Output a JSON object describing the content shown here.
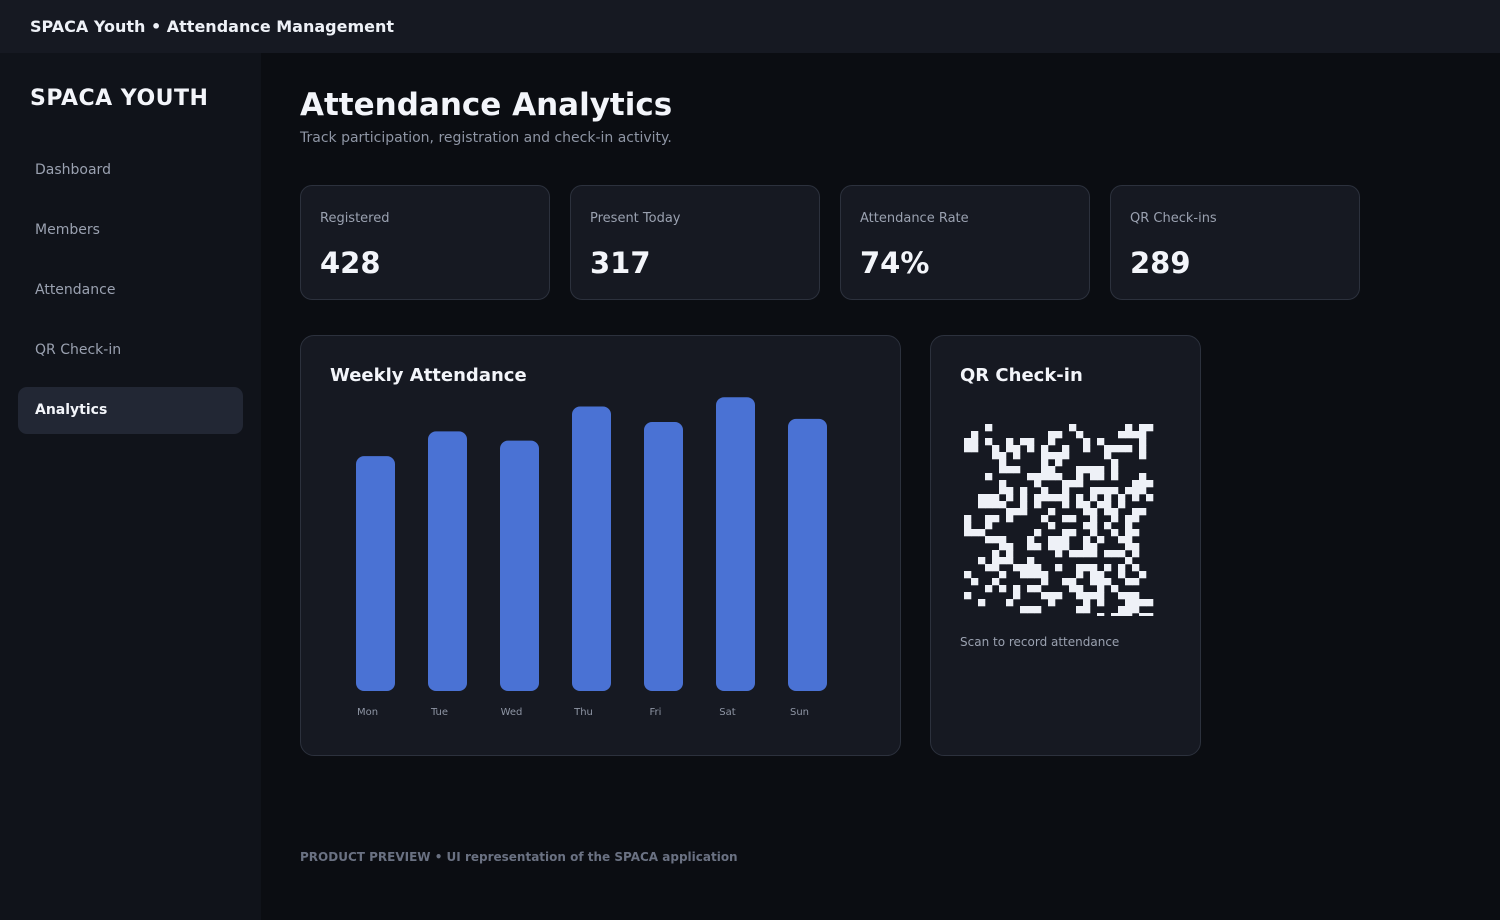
{
  "app": {
    "title": "SPACA Youth • Attendance Management"
  },
  "sidebar": {
    "brand": "SPACA YOUTH",
    "items": [
      {
        "label": "Dashboard",
        "active": false
      },
      {
        "label": "Members",
        "active": false
      },
      {
        "label": "Attendance",
        "active": false
      },
      {
        "label": "QR Check-in",
        "active": false
      },
      {
        "label": "Analytics",
        "active": true
      }
    ]
  },
  "header": {
    "title": "Attendance Analytics",
    "subtitle": "Track participation, registration and check-in activity."
  },
  "stats": [
    {
      "label": "Registered",
      "value": "428"
    },
    {
      "label": "Present Today",
      "value": "317"
    },
    {
      "label": "Attendance Rate",
      "value": "74%"
    },
    {
      "label": "QR Check-ins",
      "value": "289"
    }
  ],
  "weekly_panel": {
    "title": "Weekly Attendance"
  },
  "chart_data": {
    "type": "bar",
    "title": "Weekly Attendance",
    "categories": [
      "Mon",
      "Tue",
      "Wed",
      "Thu",
      "Fri",
      "Sat",
      "Sun"
    ],
    "values": [
      227,
      251,
      242,
      275,
      260,
      284,
      263
    ],
    "ylim": [
      0,
      290
    ],
    "grid": false,
    "color": "#4a72d4"
  },
  "qr_panel": {
    "title": "QR Check-in",
    "caption": "Scan to record attendance",
    "icon": "qr-code-icon"
  },
  "footer": {
    "text": "PRODUCT PREVIEW • UI representation of the SPACA application"
  },
  "colors": {
    "background": "#0b0d12",
    "topbar": "#161922",
    "sidebar": "#10131a",
    "card": "#161922",
    "accent": "#4a72d4",
    "active_nav": "#222734"
  }
}
